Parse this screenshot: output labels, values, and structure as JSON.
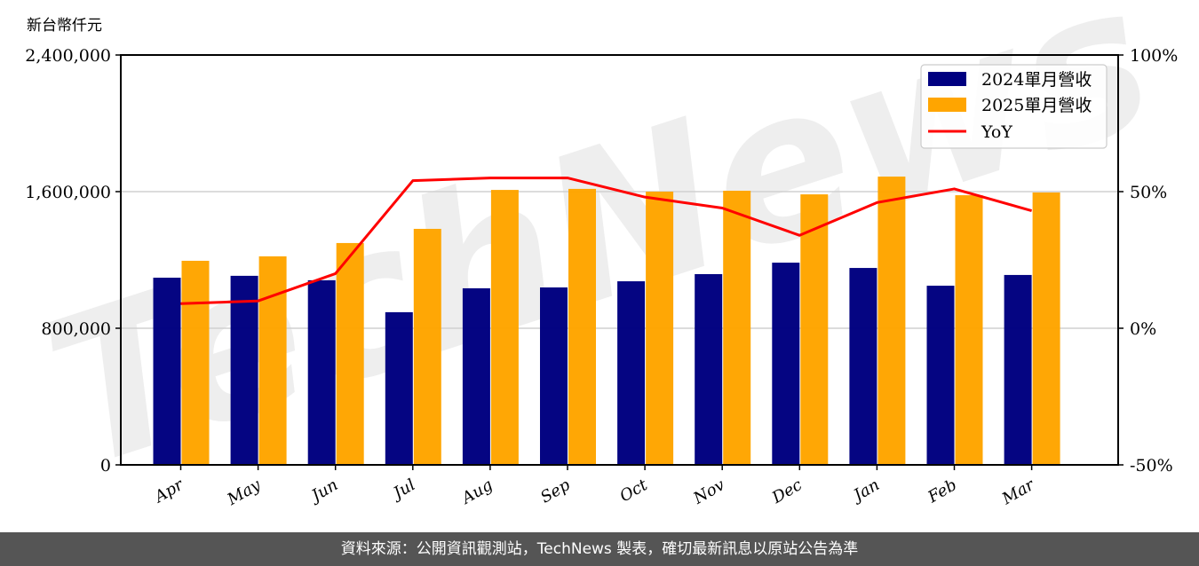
{
  "chart_data": {
    "type": "bar",
    "title": "",
    "unit_label": "新台幣仟元",
    "xlabel": "",
    "ylabel": "新台幣仟元",
    "categories": [
      "Apr",
      "May",
      "Jun",
      "Jul",
      "Aug",
      "Sep",
      "Oct",
      "Nov",
      "Dec",
      "Jan",
      "Feb",
      "Mar"
    ],
    "series": [
      {
        "name": "2024單月營收",
        "type": "bar",
        "color": "#000080",
        "axis": "left",
        "values": [
          1096000,
          1107000,
          1081000,
          894000,
          1034000,
          1039000,
          1075000,
          1117000,
          1184000,
          1153000,
          1049000,
          1112000
        ]
      },
      {
        "name": "2025單月營收",
        "type": "bar",
        "color": "#FFA500",
        "axis": "left",
        "values": [
          1195000,
          1221000,
          1299000,
          1382000,
          1610000,
          1616000,
          1600000,
          1605000,
          1584000,
          1688000,
          1579000,
          1595000
        ]
      },
      {
        "name": "YoY",
        "type": "line",
        "color": "#FF0000",
        "axis": "right",
        "values": [
          9,
          10,
          20,
          54,
          55,
          55,
          48,
          44,
          34,
          46,
          51,
          43
        ]
      }
    ],
    "ylim": [
      0,
      2400000
    ],
    "y_ticks": [
      "0",
      "800,000",
      "1,600,000",
      "2,400,000"
    ],
    "y2lim": [
      -50,
      100
    ],
    "y2_ticks": [
      "-50%",
      "0%",
      "50%",
      "100%"
    ],
    "grid": "horizontal",
    "legend_position": "upper right",
    "legend": [
      "2024單月營收",
      "2025單月營收",
      "YoY"
    ]
  },
  "watermark": "TechNews",
  "footer": {
    "text": "資料來源：公開資訊觀測站，TechNews 製表，確切最新訊息以原站公告為準"
  }
}
